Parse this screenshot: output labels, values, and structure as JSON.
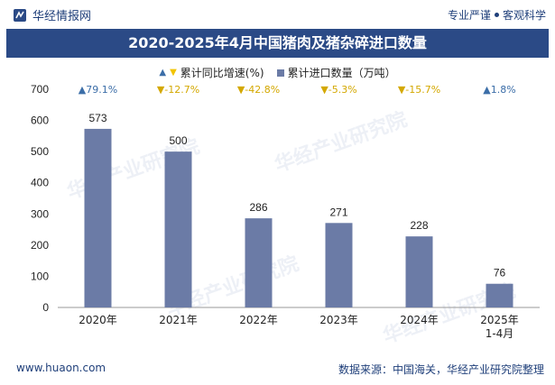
{
  "header": {
    "brand": "华经情报网",
    "tagline_left": "专业严谨",
    "tagline_right": "客观科学"
  },
  "title": "2020-2025年4月中国猪肉及猪杂碎进口数量",
  "legend": {
    "growth": "累计同比增速(%)",
    "volume": "累计进口数量（万吨）"
  },
  "colors": {
    "bar": "#6b7ba6",
    "up": "#3c6ea8",
    "down": "#f2c400",
    "title_bg": "#2b4a86"
  },
  "chart_data": {
    "type": "bar",
    "categories": [
      "2020年",
      "2021年",
      "2022年",
      "2023年",
      "2024年",
      "2025年\n1-4月"
    ],
    "values": [
      573,
      500,
      286,
      271,
      228,
      76
    ],
    "growth": [
      "79.1%",
      "-12.7%",
      "-42.8%",
      "-5.3%",
      "-15.7%",
      "1.8%"
    ],
    "growth_dir": [
      "up",
      "down",
      "down",
      "down",
      "down",
      "up"
    ],
    "yticks": [
      0,
      100,
      200,
      300,
      400,
      500,
      600,
      700
    ],
    "ylim": [
      0,
      700
    ]
  },
  "watermark": {
    "cn": "华经产业研究院",
    "url": "www.huaon.com"
  },
  "footer": {
    "left": "www.huaon.com",
    "right": "数据来源：中国海关，华经产业研究院整理"
  }
}
